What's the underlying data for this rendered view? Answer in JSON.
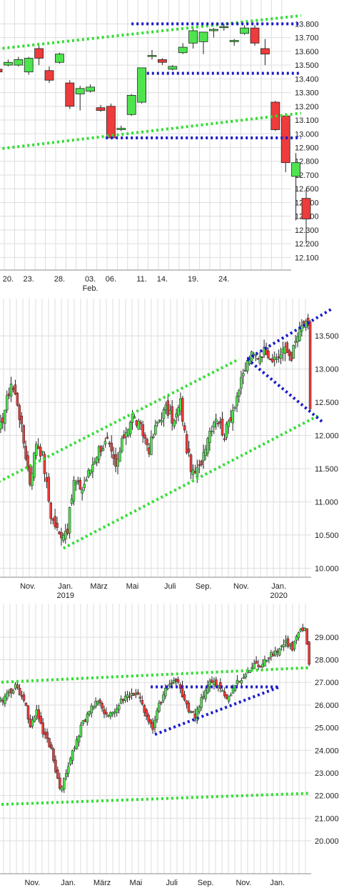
{
  "colors": {
    "up": "#4ee44e",
    "down": "#ee3b3b",
    "wick": "#222222",
    "grid": "#dddddd",
    "trend_green": "#33dd33",
    "trend_blue": "#1a1acc"
  },
  "chart_data": [
    {
      "type": "candlestick",
      "ylim": [
        12050,
        13880
      ],
      "yticks": [
        "13.800",
        "13.700",
        "13.600",
        "13.500",
        "13.400",
        "13.300",
        "13.200",
        "13.100",
        "13.000",
        "12.900",
        "12.800",
        "12.700",
        "12.600",
        "12.500",
        "12.400",
        "12.300",
        "12.200",
        "12.100"
      ],
      "ytick_values": [
        13800,
        13700,
        13600,
        13500,
        13400,
        13300,
        13200,
        13100,
        13000,
        12900,
        12800,
        12700,
        12600,
        12500,
        12400,
        12300,
        12200,
        12100
      ],
      "xticks": [
        "20.",
        "23.",
        "28.",
        "03.",
        "06.",
        "11.",
        "14.",
        "19.",
        "24."
      ],
      "xtick_index": [
        1,
        3,
        6,
        9,
        11,
        14,
        16,
        19,
        22
      ],
      "xlabel_sub": "Feb.",
      "xlabel_sub_index": 9,
      "candles": [
        {
          "o": 13470,
          "h": 13480,
          "l": 13440,
          "c": 13450
        },
        {
          "o": 13500,
          "h": 13540,
          "l": 13490,
          "c": 13520
        },
        {
          "o": 13500,
          "h": 13560,
          "l": 13490,
          "c": 13540
        },
        {
          "o": 13450,
          "h": 13560,
          "l": 13430,
          "c": 13550
        },
        {
          "o": 13620,
          "h": 13640,
          "l": 13500,
          "c": 13550
        },
        {
          "o": 13460,
          "h": 13490,
          "l": 13370,
          "c": 13390
        },
        {
          "o": 13520,
          "h": 13590,
          "l": 13510,
          "c": 13580
        },
        {
          "o": 13370,
          "h": 13390,
          "l": 13180,
          "c": 13200
        },
        {
          "o": 13290,
          "h": 13350,
          "l": 13170,
          "c": 13330
        },
        {
          "o": 13310,
          "h": 13360,
          "l": 13300,
          "c": 13340
        },
        {
          "o": 13190,
          "h": 13210,
          "l": 13160,
          "c": 13170
        },
        {
          "o": 13200,
          "h": 13220,
          "l": 12970,
          "c": 12970
        },
        {
          "o": 13030,
          "h": 13060,
          "l": 13020,
          "c": 13040
        },
        {
          "o": 13140,
          "h": 13290,
          "l": 13130,
          "c": 13280
        },
        {
          "o": 13230,
          "h": 13480,
          "l": 13220,
          "c": 13480
        },
        {
          "o": 13570,
          "h": 13610,
          "l": 13540,
          "c": 13570
        },
        {
          "o": 13540,
          "h": 13550,
          "l": 13500,
          "c": 13520
        },
        {
          "o": 13470,
          "h": 13500,
          "l": 13460,
          "c": 13490
        },
        {
          "o": 13590,
          "h": 13660,
          "l": 13580,
          "c": 13630
        },
        {
          "o": 13660,
          "h": 13780,
          "l": 13620,
          "c": 13750
        },
        {
          "o": 13670,
          "h": 13730,
          "l": 13580,
          "c": 13740
        },
        {
          "o": 13750,
          "h": 13770,
          "l": 13700,
          "c": 13760
        },
        {
          "o": 13780,
          "h": 13800,
          "l": 13750,
          "c": 13780
        },
        {
          "o": 13670,
          "h": 13690,
          "l": 13640,
          "c": 13680
        },
        {
          "o": 13730,
          "h": 13790,
          "l": 13720,
          "c": 13770
        },
        {
          "o": 13770,
          "h": 13790,
          "l": 13640,
          "c": 13660
        },
        {
          "o": 13620,
          "h": 13690,
          "l": 13500,
          "c": 13580
        },
        {
          "o": 13230,
          "h": 13240,
          "l": 13020,
          "c": 13030
        },
        {
          "o": 13130,
          "h": 13150,
          "l": 12720,
          "c": 12790
        },
        {
          "o": 12690,
          "h": 12860,
          "l": 12370,
          "c": 12790
        },
        {
          "o": 12530,
          "h": 12600,
          "l": 12200,
          "c": 12380
        }
      ],
      "trendlines": [
        {
          "color": "green",
          "points": [
            [
              -1,
              13610
            ],
            [
              29.5,
              13860
            ]
          ]
        },
        {
          "color": "green",
          "points": [
            [
              -1,
              12880
            ],
            [
              29.5,
              13150
            ]
          ]
        },
        {
          "color": "blue",
          "points": [
            [
              13.0,
              13800
            ],
            [
              29.5,
              13800
            ]
          ]
        },
        {
          "color": "blue",
          "points": [
            [
              14.5,
              13440
            ],
            [
              29.5,
              13440
            ]
          ]
        },
        {
          "color": "blue",
          "points": [
            [
              10.5,
              12970
            ],
            [
              29.5,
              12970
            ]
          ]
        }
      ]
    },
    {
      "type": "candlestick",
      "ylim": [
        9950,
        13900
      ],
      "yticks": [
        "13.500",
        "13.000",
        "12.500",
        "12.000",
        "11.500",
        "11.000",
        "10.500",
        "10.000"
      ],
      "ytick_values": [
        13500,
        13000,
        12500,
        12000,
        11500,
        11000,
        10500,
        10000
      ],
      "xticks": [
        "Nov.",
        "Jan.",
        "März",
        "Mai",
        "Juli",
        "Sep.",
        "Nov.",
        "Jan."
      ],
      "xtick_index": [
        14,
        32,
        48,
        64,
        82,
        98,
        116,
        134
      ],
      "xticks_sub": [
        "2019",
        "2020"
      ],
      "xticks_sub_index": [
        32,
        134
      ],
      "candle_count": 150,
      "path": [
        [
          0,
          12000
        ],
        [
          3,
          12400
        ],
        [
          6,
          12800
        ],
        [
          9,
          12500
        ],
        [
          13,
          11700
        ],
        [
          15,
          11300
        ],
        [
          18,
          11900
        ],
        [
          21,
          11700
        ],
        [
          25,
          10800
        ],
        [
          29,
          10500
        ],
        [
          33,
          10600
        ],
        [
          36,
          11300
        ],
        [
          40,
          11200
        ],
        [
          44,
          11500
        ],
        [
          48,
          11800
        ],
        [
          52,
          11900
        ],
        [
          56,
          11500
        ],
        [
          60,
          12000
        ],
        [
          64,
          12300
        ],
        [
          68,
          12100
        ],
        [
          72,
          11800
        ],
        [
          76,
          12200
        ],
        [
          80,
          12400
        ],
        [
          84,
          12200
        ],
        [
          87,
          12500
        ],
        [
          90,
          11800
        ],
        [
          93,
          11400
        ],
        [
          96,
          11500
        ],
        [
          100,
          12000
        ],
        [
          104,
          12300
        ],
        [
          108,
          12000
        ],
        [
          112,
          12400
        ],
        [
          116,
          12800
        ],
        [
          120,
          13200
        ],
        [
          124,
          13200
        ],
        [
          128,
          13300
        ],
        [
          132,
          13100
        ],
        [
          136,
          13300
        ],
        [
          140,
          13200
        ],
        [
          143,
          13500
        ],
        [
          146,
          13700
        ],
        [
          148,
          13600
        ],
        [
          150,
          12400
        ]
      ],
      "trendlines": [
        {
          "color": "green",
          "points": [
            [
              0,
              11300
            ],
            [
              115,
              13150
            ]
          ]
        },
        {
          "color": "green",
          "points": [
            [
              31,
              10300
            ],
            [
              153,
              12300
            ]
          ]
        },
        {
          "color": "blue",
          "points": [
            [
              119,
              13150
            ],
            [
              159,
              13900
            ]
          ]
        },
        {
          "color": "blue",
          "points": [
            [
              119,
              13150
            ],
            [
              155,
              12200
            ]
          ]
        }
      ]
    },
    {
      "type": "candlestick",
      "ylim": [
        18800,
        30100
      ],
      "yticks": [
        "29.000",
        "28.000",
        "27.000",
        "26.000",
        "25.000",
        "24.000",
        "23.000",
        "22.000",
        "21.000",
        "20.000"
      ],
      "ytick_values": [
        29000,
        28000,
        27000,
        26000,
        25000,
        24000,
        23000,
        22000,
        21000,
        20000
      ],
      "xticks": [
        "Nov.",
        "Jan.",
        "März",
        "Mai",
        "Juli",
        "Sep.",
        "Nov.",
        "Jan."
      ],
      "xtick_index": [
        16,
        33,
        49,
        65,
        82,
        98,
        116,
        132
      ],
      "candle_count": 148,
      "path": [
        [
          0,
          26000
        ],
        [
          4,
          26500
        ],
        [
          8,
          26800
        ],
        [
          12,
          26300
        ],
        [
          15,
          25000
        ],
        [
          18,
          25800
        ],
        [
          21,
          24800
        ],
        [
          25,
          24000
        ],
        [
          29,
          22300
        ],
        [
          32,
          22900
        ],
        [
          35,
          24000
        ],
        [
          39,
          25000
        ],
        [
          43,
          25800
        ],
        [
          47,
          26100
        ],
        [
          51,
          25600
        ],
        [
          55,
          25700
        ],
        [
          59,
          26300
        ],
        [
          63,
          26500
        ],
        [
          67,
          26400
        ],
        [
          70,
          25400
        ],
        [
          73,
          24900
        ],
        [
          76,
          26000
        ],
        [
          80,
          26800
        ],
        [
          84,
          27100
        ],
        [
          87,
          26500
        ],
        [
          90,
          25800
        ],
        [
          93,
          25500
        ],
        [
          96,
          26300
        ],
        [
          100,
          27000
        ],
        [
          104,
          26800
        ],
        [
          108,
          26300
        ],
        [
          112,
          26900
        ],
        [
          116,
          27200
        ],
        [
          120,
          27700
        ],
        [
          124,
          27800
        ],
        [
          128,
          28200
        ],
        [
          132,
          28400
        ],
        [
          136,
          28800
        ],
        [
          139,
          28500
        ],
        [
          142,
          29200
        ],
        [
          145,
          29300
        ],
        [
          147,
          27800
        ]
      ],
      "trendlines": [
        {
          "color": "green",
          "points": [
            [
              -1,
              27000
            ],
            [
              147,
              27650
            ]
          ]
        },
        {
          "color": "green",
          "points": [
            [
              -1,
              21600
            ],
            [
              147,
              22100
            ]
          ]
        },
        {
          "color": "blue",
          "points": [
            [
              72,
              26800
            ],
            [
              133,
              26800
            ]
          ]
        },
        {
          "color": "blue",
          "points": [
            [
              74,
              24700
            ],
            [
              133,
              26800
            ]
          ]
        }
      ]
    }
  ]
}
